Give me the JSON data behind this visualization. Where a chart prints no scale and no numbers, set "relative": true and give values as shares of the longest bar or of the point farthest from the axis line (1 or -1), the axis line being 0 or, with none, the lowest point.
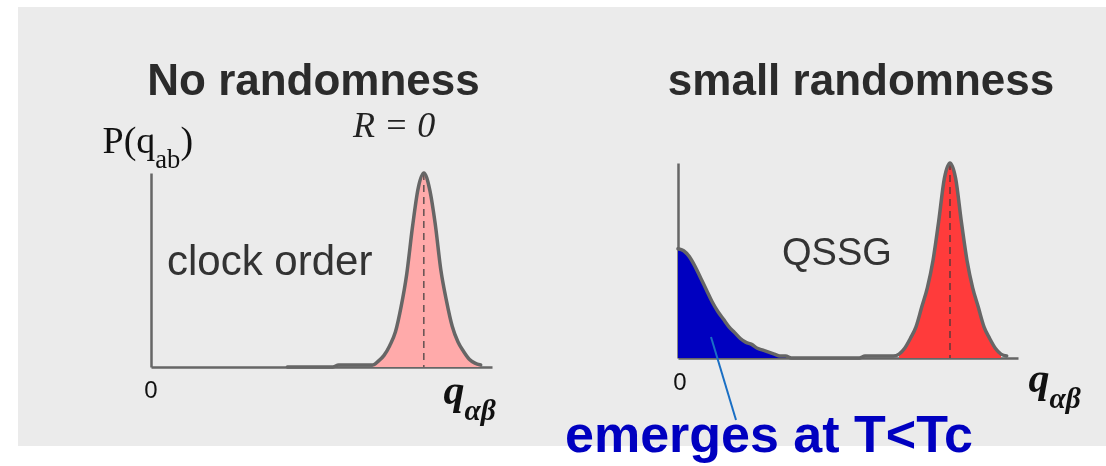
{
  "chart_data": [
    {
      "type": "area",
      "title": "No randomness",
      "ylabel": "P(q$_{ab}$)",
      "xlabel": "q$_{αβ}$",
      "relative": true,
      "categories": [
        null,
        null,
        null,
        null,
        null,
        null,
        null,
        null,
        null,
        null,
        null,
        null,
        null,
        null,
        null,
        null,
        null,
        null,
        null,
        null,
        null,
        null,
        null,
        null,
        null,
        null,
        null,
        null,
        null,
        null,
        null,
        null,
        null,
        null,
        null,
        null,
        null,
        null,
        null,
        null,
        null,
        null,
        null,
        null,
        null,
        null,
        null,
        null,
        null,
        null,
        null,
        null,
        null,
        null,
        null,
        null,
        null,
        null,
        null,
        null,
        null
      ],
      "series": [
        {
          "type": "area",
          "color": "#ffaaaa",
          "values": [
            null,
            null,
            null,
            null,
            null,
            null,
            null,
            null,
            null,
            null,
            null,
            null,
            null,
            null,
            null,
            null,
            null,
            null,
            null,
            null,
            null,
            null,
            null,
            null,
            null,
            null,
            null,
            null,
            null,
            null,
            null,
            null,
            null,
            null,
            null,
            null,
            null,
            null,
            null,
            0.01,
            0.03,
            0.06,
            0.11,
            0.18,
            0.31,
            0.48,
            0.72,
            0.92,
            1,
            0.92,
            0.74,
            0.5,
            0.34,
            0.21,
            0.13,
            0.08,
            0.04,
            0.02,
            0.01,
            null,
            null
          ]
        },
        {
          "type": "line",
          "color": "#666666",
          "values": [
            null,
            null,
            null,
            null,
            null,
            null,
            null,
            null,
            null,
            null,
            null,
            null,
            null,
            null,
            null,
            null,
            null,
            null,
            null,
            null,
            null,
            null,
            null,
            null,
            0,
            0,
            0,
            0,
            0,
            0,
            0,
            0,
            0,
            0.01,
            0.01,
            0.01,
            0.01,
            0.01,
            0.01,
            0.01,
            0.03,
            0.06,
            0.11,
            0.18,
            0.31,
            0.48,
            0.72,
            0.92,
            1,
            0.92,
            0.74,
            0.5,
            0.34,
            0.21,
            0.13,
            0.08,
            0.04,
            0.02,
            0.01,
            null,
            null
          ]
        }
      ],
      "annotations": [
        "R = 0",
        "clock order",
        "0"
      ]
    },
    {
      "type": "area",
      "title": "small randomness",
      "xlabel": "q$_{αβ}$",
      "relative": true,
      "categories": [
        null,
        null,
        null,
        null,
        null,
        null,
        null,
        null,
        null,
        null,
        null,
        null,
        null,
        null,
        null,
        null,
        null,
        null,
        null,
        null,
        null,
        null,
        null,
        null,
        null,
        null,
        null,
        null,
        null,
        null,
        null,
        null,
        null,
        null,
        null,
        null,
        null,
        null,
        null,
        null,
        null,
        null,
        null,
        null,
        null,
        null,
        null,
        null,
        null,
        null,
        null,
        null,
        null,
        null,
        null,
        null,
        null,
        null,
        null,
        null,
        null
      ],
      "series": [
        {
          "type": "area",
          "color": "#0000c0",
          "values": [
            0.56,
            0.55,
            0.52,
            0.47,
            0.41,
            0.35,
            0.29,
            0.24,
            0.2,
            0.16,
            0.13,
            0.1,
            0.08,
            0.07,
            0.05,
            0.04,
            0.03,
            0.02,
            0.01,
            0.01,
            0,
            null,
            null,
            null,
            null,
            null,
            null,
            null,
            null,
            null,
            null,
            null,
            null,
            null,
            null,
            null,
            null,
            null,
            null,
            null,
            null,
            null,
            null,
            null,
            null,
            null,
            null,
            null,
            null,
            null,
            null,
            null,
            null,
            null,
            null,
            null,
            null,
            null,
            null,
            null,
            null
          ]
        },
        {
          "type": "area",
          "color": "#ff3b3b",
          "values": [
            null,
            null,
            null,
            null,
            null,
            null,
            null,
            null,
            null,
            null,
            null,
            null,
            null,
            null,
            null,
            null,
            null,
            null,
            null,
            null,
            null,
            null,
            null,
            null,
            null,
            null,
            null,
            null,
            null,
            null,
            null,
            null,
            null,
            null,
            null,
            null,
            null,
            null,
            null,
            0.02,
            0.05,
            0.1,
            0.16,
            0.26,
            0.36,
            0.5,
            0.7,
            0.92,
            1,
            0.92,
            0.7,
            0.5,
            0.36,
            0.26,
            0.16,
            0.1,
            0.05,
            0.02,
            null,
            null,
            null
          ]
        },
        {
          "type": "line",
          "color": "#666666",
          "values": [
            0.56,
            0.55,
            0.52,
            0.47,
            0.41,
            0.35,
            0.29,
            0.24,
            0.2,
            0.16,
            0.13,
            0.1,
            0.08,
            0.07,
            0.05,
            0.04,
            0.03,
            0.02,
            0.01,
            0.01,
            0,
            0,
            0,
            0,
            0,
            0,
            0,
            0,
            0,
            0,
            0,
            0,
            0,
            0.01,
            0.01,
            0.01,
            0.01,
            0.01,
            0.01,
            0.02,
            0.05,
            0.1,
            0.16,
            0.26,
            0.36,
            0.5,
            0.7,
            0.92,
            1,
            0.92,
            0.7,
            0.5,
            0.36,
            0.26,
            0.16,
            0.1,
            0.05,
            0.02,
            0.01,
            null,
            null
          ]
        }
      ],
      "annotations": [
        "QSSG",
        "0",
        "emerges at T<Tc"
      ]
    }
  ]
}
